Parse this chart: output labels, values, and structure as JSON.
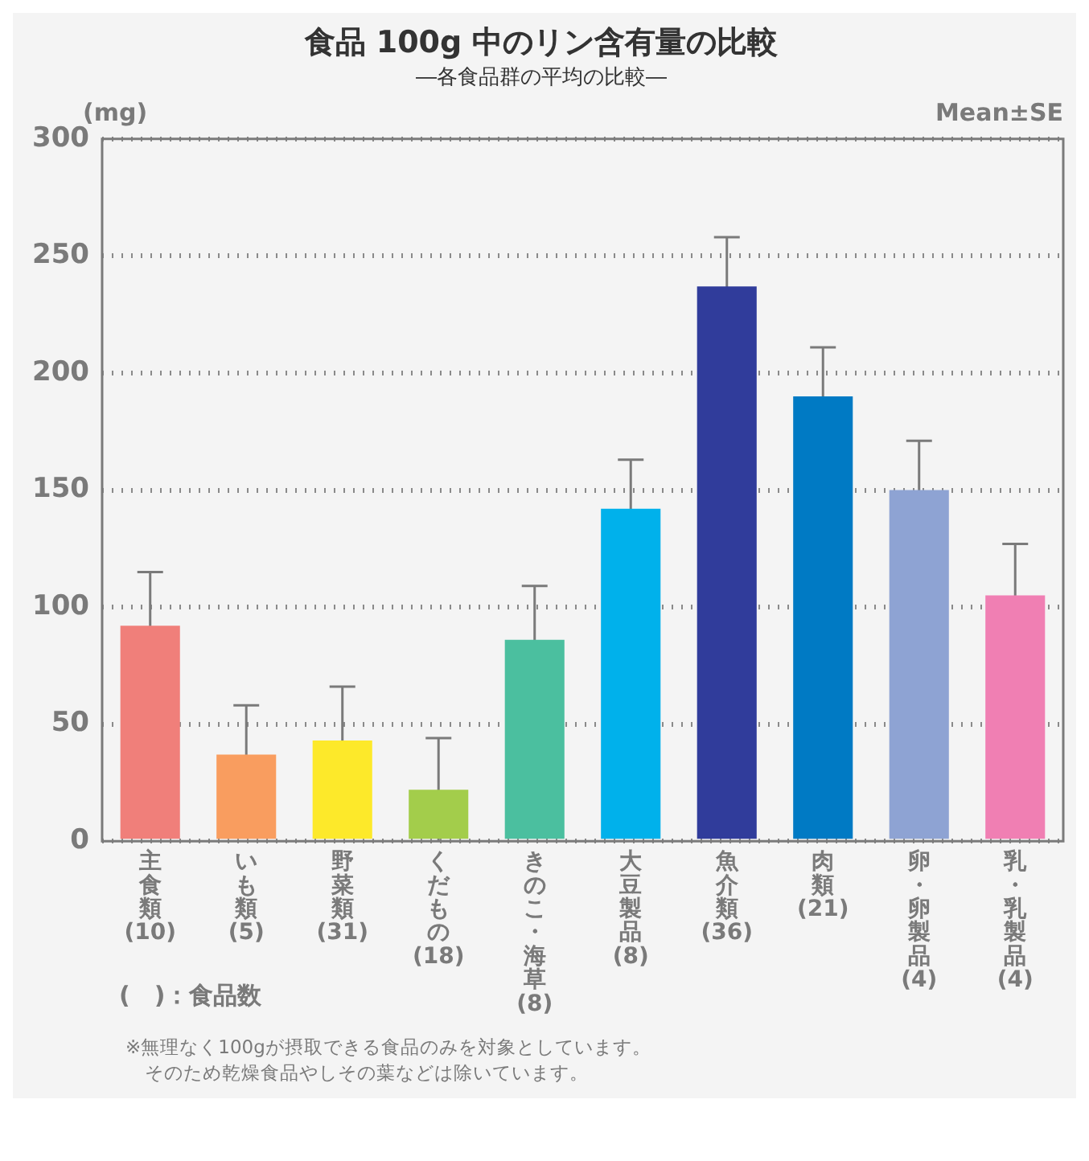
{
  "chart_data": {
    "type": "bar",
    "title": "食品 100g 中のリン含有量の比較",
    "subtitle": "―各食品群の平均の比較―",
    "ylabel": "(mg)",
    "categories": [
      "主食類 (10)",
      "いも類 (5)",
      "野菜類 (31)",
      "くだもの (18)",
      "きのこ・海草 (8)",
      "大豆製品 (8)",
      "魚介類 (36)",
      "肉類 (21)",
      "卵・卵製品 (4)",
      "乳・乳製品 (4)"
    ],
    "values": [
      92,
      37,
      43,
      22,
      86,
      142,
      237,
      190,
      150,
      105
    ],
    "errors": [
      23,
      21,
      23,
      22,
      23,
      21,
      21,
      21,
      21,
      22
    ],
    "colors": [
      "#f07f7a",
      "#f99d5f",
      "#fde92a",
      "#a3cd4b",
      "#4bbf9f",
      "#00b1eb",
      "#303c9b",
      "#007ac4",
      "#8ea3d3",
      "#f07fb3"
    ],
    "ylim": [
      0,
      300
    ],
    "yticks": [
      0,
      50,
      100,
      150,
      200,
      250,
      300
    ],
    "grid": "y",
    "annotations": [
      "Mean±SE",
      "(　)：食品数",
      "※無理なく100gが摂取できる食品のみを対象としています。",
      "そのため乾燥食品やしその葉などは除いています。"
    ]
  }
}
